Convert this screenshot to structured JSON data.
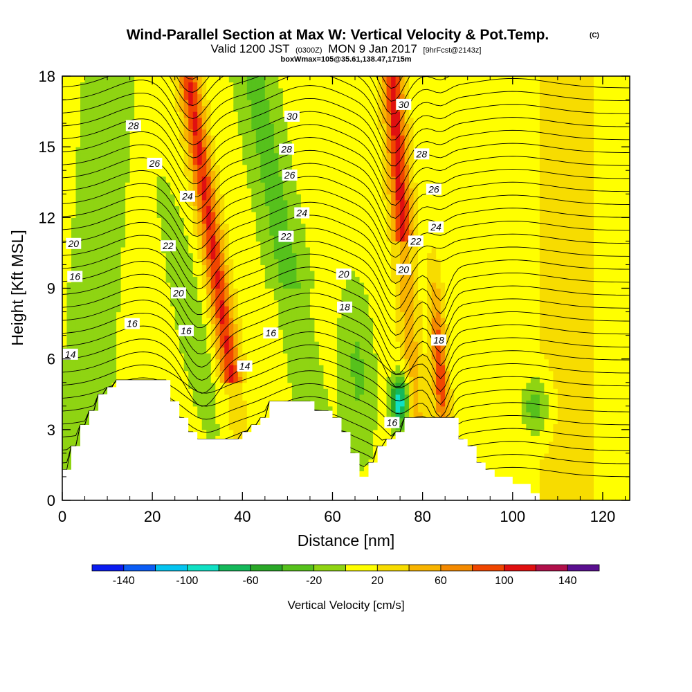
{
  "chart_data": {
    "type": "heatmap",
    "title": "Wind-Parallel Section at Max W: Vertical Velocity & Pot.Temp.",
    "title_mark": "(C)",
    "subtitle": {
      "valid_prefix": "Valid 1200 JST",
      "utc": "(0300Z)",
      "date": "MON 9 Jan 2017",
      "forecast": "[9hrFcst@2143z]"
    },
    "box_info": "boxWmax=105@35.61,138.47,1715m",
    "xlabel": "Distance [nm]",
    "ylabel": "Height [Kft MSL]",
    "xlim": [
      0,
      126
    ],
    "ylim": [
      0,
      18
    ],
    "xticks": [
      0,
      20,
      40,
      60,
      80,
      100,
      120
    ],
    "yticks": [
      0,
      3,
      6,
      9,
      12,
      15,
      18
    ],
    "colorbar": {
      "title": "Vertical Velocity [cm/s]",
      "levels": [
        -160,
        -140,
        -120,
        -100,
        -80,
        -60,
        -40,
        -20,
        0,
        20,
        40,
        60,
        80,
        100,
        120,
        140,
        160
      ],
      "colors": [
        "#0a1cf0",
        "#0b5cf5",
        "#04c4f0",
        "#10e0c4",
        "#14b85a",
        "#2aa828",
        "#56c11c",
        "#8fd412",
        "#ffff00",
        "#f7dc00",
        "#f8b400",
        "#f48a00",
        "#f04600",
        "#e01010",
        "#b0104a",
        "#5a1090"
      ],
      "tick_values": [
        -140,
        -100,
        -60,
        -20,
        20,
        60,
        100,
        140
      ],
      "tick_labels": [
        "-140",
        "-100",
        "-60",
        "-20",
        "20",
        "60",
        "100",
        "140"
      ]
    },
    "terrain": [
      [
        0,
        1.3
      ],
      [
        2,
        1.3
      ],
      [
        2,
        2.3
      ],
      [
        4,
        2.3
      ],
      [
        4,
        3.2
      ],
      [
        6,
        3.2
      ],
      [
        6,
        3.8
      ],
      [
        8,
        3.8
      ],
      [
        8,
        4.5
      ],
      [
        10,
        4.5
      ],
      [
        10,
        4.8
      ],
      [
        12,
        4.8
      ],
      [
        12,
        5.1
      ],
      [
        14,
        5.1
      ],
      [
        14,
        5.1
      ],
      [
        24,
        5.1
      ],
      [
        24,
        4.2
      ],
      [
        26,
        4.2
      ],
      [
        26,
        3.5
      ],
      [
        28,
        3.5
      ],
      [
        28,
        2.9
      ],
      [
        30,
        2.9
      ],
      [
        30,
        2.6
      ],
      [
        34,
        2.6
      ],
      [
        34,
        2.6
      ],
      [
        40,
        2.6
      ],
      [
        40,
        2.9
      ],
      [
        42,
        2.9
      ],
      [
        42,
        3.2
      ],
      [
        44,
        3.2
      ],
      [
        44,
        3.5
      ],
      [
        46,
        3.5
      ],
      [
        46,
        4.2
      ],
      [
        56,
        4.2
      ],
      [
        56,
        3.8
      ],
      [
        60,
        3.8
      ],
      [
        60,
        3.5
      ],
      [
        62,
        3.5
      ],
      [
        62,
        2.9
      ],
      [
        64,
        2.9
      ],
      [
        64,
        2.0
      ],
      [
        66,
        2.0
      ],
      [
        66,
        1.0
      ],
      [
        68,
        1.0
      ],
      [
        68,
        1.6
      ],
      [
        70,
        1.6
      ],
      [
        70,
        2.3
      ],
      [
        72,
        2.3
      ],
      [
        72,
        2.6
      ],
      [
        74,
        2.6
      ],
      [
        74,
        2.9
      ],
      [
        76,
        2.9
      ],
      [
        76,
        3.5
      ],
      [
        80,
        3.5
      ],
      [
        80,
        3.5
      ],
      [
        88,
        3.5
      ],
      [
        88,
        2.6
      ],
      [
        90,
        2.6
      ],
      [
        90,
        2.3
      ],
      [
        92,
        2.3
      ],
      [
        92,
        1.6
      ],
      [
        94,
        1.6
      ],
      [
        94,
        1.3
      ],
      [
        96,
        1.3
      ],
      [
        96,
        1.0
      ],
      [
        100,
        1.0
      ],
      [
        100,
        0.7
      ],
      [
        104,
        0.7
      ],
      [
        104,
        0.3
      ],
      [
        106,
        0.3
      ],
      [
        106,
        0.0
      ]
    ],
    "theta_levels": [
      14,
      16,
      18,
      20,
      22,
      24,
      26,
      28,
      30
    ],
    "contour_labels": [
      {
        "text": "14",
        "x": 1.8,
        "y": 6.2
      },
      {
        "text": "16",
        "x": 15.5,
        "y": 7.5
      },
      {
        "text": "16",
        "x": 27.5,
        "y": 7.2
      },
      {
        "text": "20",
        "x": 25.8,
        "y": 8.8
      },
      {
        "text": "22",
        "x": 23.5,
        "y": 10.8
      },
      {
        "text": "24",
        "x": 27.8,
        "y": 12.9
      },
      {
        "text": "26",
        "x": 20.5,
        "y": 14.3
      },
      {
        "text": "28",
        "x": 15.8,
        "y": 15.9
      },
      {
        "text": "20",
        "x": 2.5,
        "y": 10.9
      },
      {
        "text": "16",
        "x": 2.8,
        "y": 9.5
      },
      {
        "text": "14",
        "x": 40.5,
        "y": 5.7
      },
      {
        "text": "16",
        "x": 46.3,
        "y": 7.1
      },
      {
        "text": "22",
        "x": 49.7,
        "y": 11.2
      },
      {
        "text": "24",
        "x": 53.2,
        "y": 12.2
      },
      {
        "text": "26",
        "x": 50.5,
        "y": 13.8
      },
      {
        "text": "28",
        "x": 49.8,
        "y": 14.9
      },
      {
        "text": "30",
        "x": 51.0,
        "y": 16.3
      },
      {
        "text": "20",
        "x": 62.5,
        "y": 9.6
      },
      {
        "text": "18",
        "x": 62.7,
        "y": 8.2
      },
      {
        "text": "22",
        "x": 78.5,
        "y": 11.0
      },
      {
        "text": "20",
        "x": 75.8,
        "y": 9.8
      },
      {
        "text": "16",
        "x": 73.2,
        "y": 3.3
      },
      {
        "text": "18",
        "x": 83.6,
        "y": 6.8
      },
      {
        "text": "24",
        "x": 83.0,
        "y": 11.6
      },
      {
        "text": "26",
        "x": 82.5,
        "y": 13.2
      },
      {
        "text": "28",
        "x": 79.8,
        "y": 14.7
      },
      {
        "text": "30",
        "x": 75.8,
        "y": 16.8
      }
    ]
  }
}
